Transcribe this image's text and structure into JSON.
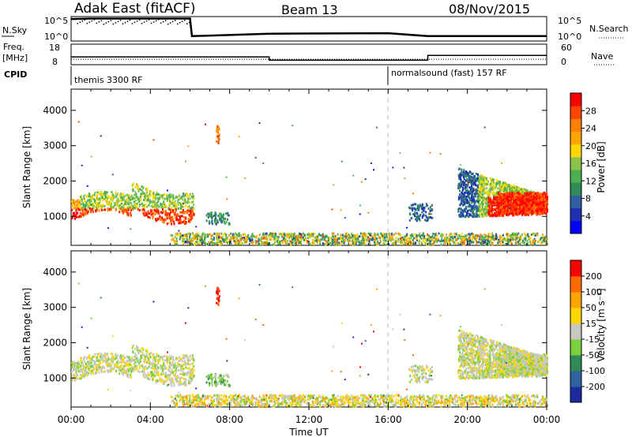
{
  "header": {
    "station": "Adak East (fitACF)",
    "beam": "Beam 13",
    "date": "08/Nov/2015"
  },
  "top_labels": {
    "nsky": "N.Sky",
    "nsearch": "N.Search",
    "freq_line1": "Freq.",
    "freq_line2": "[MHz]",
    "nave": "Nave",
    "cpid": "CPID",
    "nsky_top": "10^5",
    "nsky_bot": "10^0",
    "nsearch_top": "10^5",
    "nsearch_bot": "10^0",
    "freq_top": "18",
    "freq_bot": "8",
    "nave_top": "60",
    "nave_bot": "0"
  },
  "cpid_segments": [
    {
      "label": "themis 3300 RF",
      "start_hour": 0
    },
    {
      "label": "normalsound (fast) 157 RF",
      "start_hour": 16
    }
  ],
  "time_axis": {
    "label": "Time UT",
    "ticks": [
      "00:00",
      "04:00",
      "08:00",
      "12:00",
      "16:00",
      "20:00",
      "00:00"
    ]
  },
  "power_colorbar": {
    "label": "Power [dB]",
    "ticks": [
      "4",
      "8",
      "12",
      "16",
      "20",
      "24",
      "28"
    ],
    "colors": [
      "#0000ff",
      "#1f2fb0",
      "#2f5fa0",
      "#2e8b57",
      "#4caf50",
      "#8bc34a",
      "#ffd700",
      "#ffa500",
      "#ff7f00",
      "#ff4500",
      "#ff0000"
    ]
  },
  "velocity_colorbar": {
    "label": "Velocity [m s⁻¹]",
    "ticks": [
      "200",
      "100",
      "50",
      "15",
      "-15",
      "-50",
      "-100",
      "-200"
    ],
    "colors": [
      "#1c2aa0",
      "#2e62a0",
      "#2e8b57",
      "#7cd03c",
      "#c8c8c0",
      "#ffd700",
      "#ffa500",
      "#ff6a00",
      "#ff0000"
    ]
  },
  "chart_data": [
    {
      "type": "line",
      "title": "N.Sky / N.Search",
      "xlabel": "Time UT",
      "x": [
        0,
        1,
        6,
        6.1,
        10,
        16,
        18,
        24
      ],
      "series": [
        {
          "name": "N.Sky",
          "values": [
            4.5,
            4.6,
            4.6,
            1.0,
            1.5,
            1.6,
            1.0,
            1.0
          ]
        }
      ]
    },
    {
      "type": "line",
      "title": "Freq. / Nave",
      "xlabel": "Time UT",
      "x": [
        0,
        10,
        18,
        24
      ],
      "series": [
        {
          "name": "Freq.",
          "values": [
            11.8,
            10.2,
            12.5,
            12.5
          ]
        },
        {
          "name": "Nave",
          "values": [
            16,
            16,
            16,
            16
          ]
        }
      ]
    },
    {
      "type": "heatmap",
      "title": "Power",
      "xlabel": "Time UT",
      "ylabel": "Slant Range [km]",
      "ylim": [
        180,
        4600
      ],
      "yticks": [
        1000,
        2000,
        3000,
        4000
      ],
      "xlim": [
        0,
        24
      ],
      "colorbar_range": [
        0,
        32
      ]
    },
    {
      "type": "heatmap",
      "title": "Velocity",
      "xlabel": "Time UT",
      "ylabel": "Slant Range [km]",
      "ylim": [
        180,
        4600
      ],
      "yticks": [
        1000,
        2000,
        3000,
        4000
      ],
      "xlim": [
        0,
        24
      ],
      "colorbar_range": [
        -250,
        250
      ]
    }
  ]
}
